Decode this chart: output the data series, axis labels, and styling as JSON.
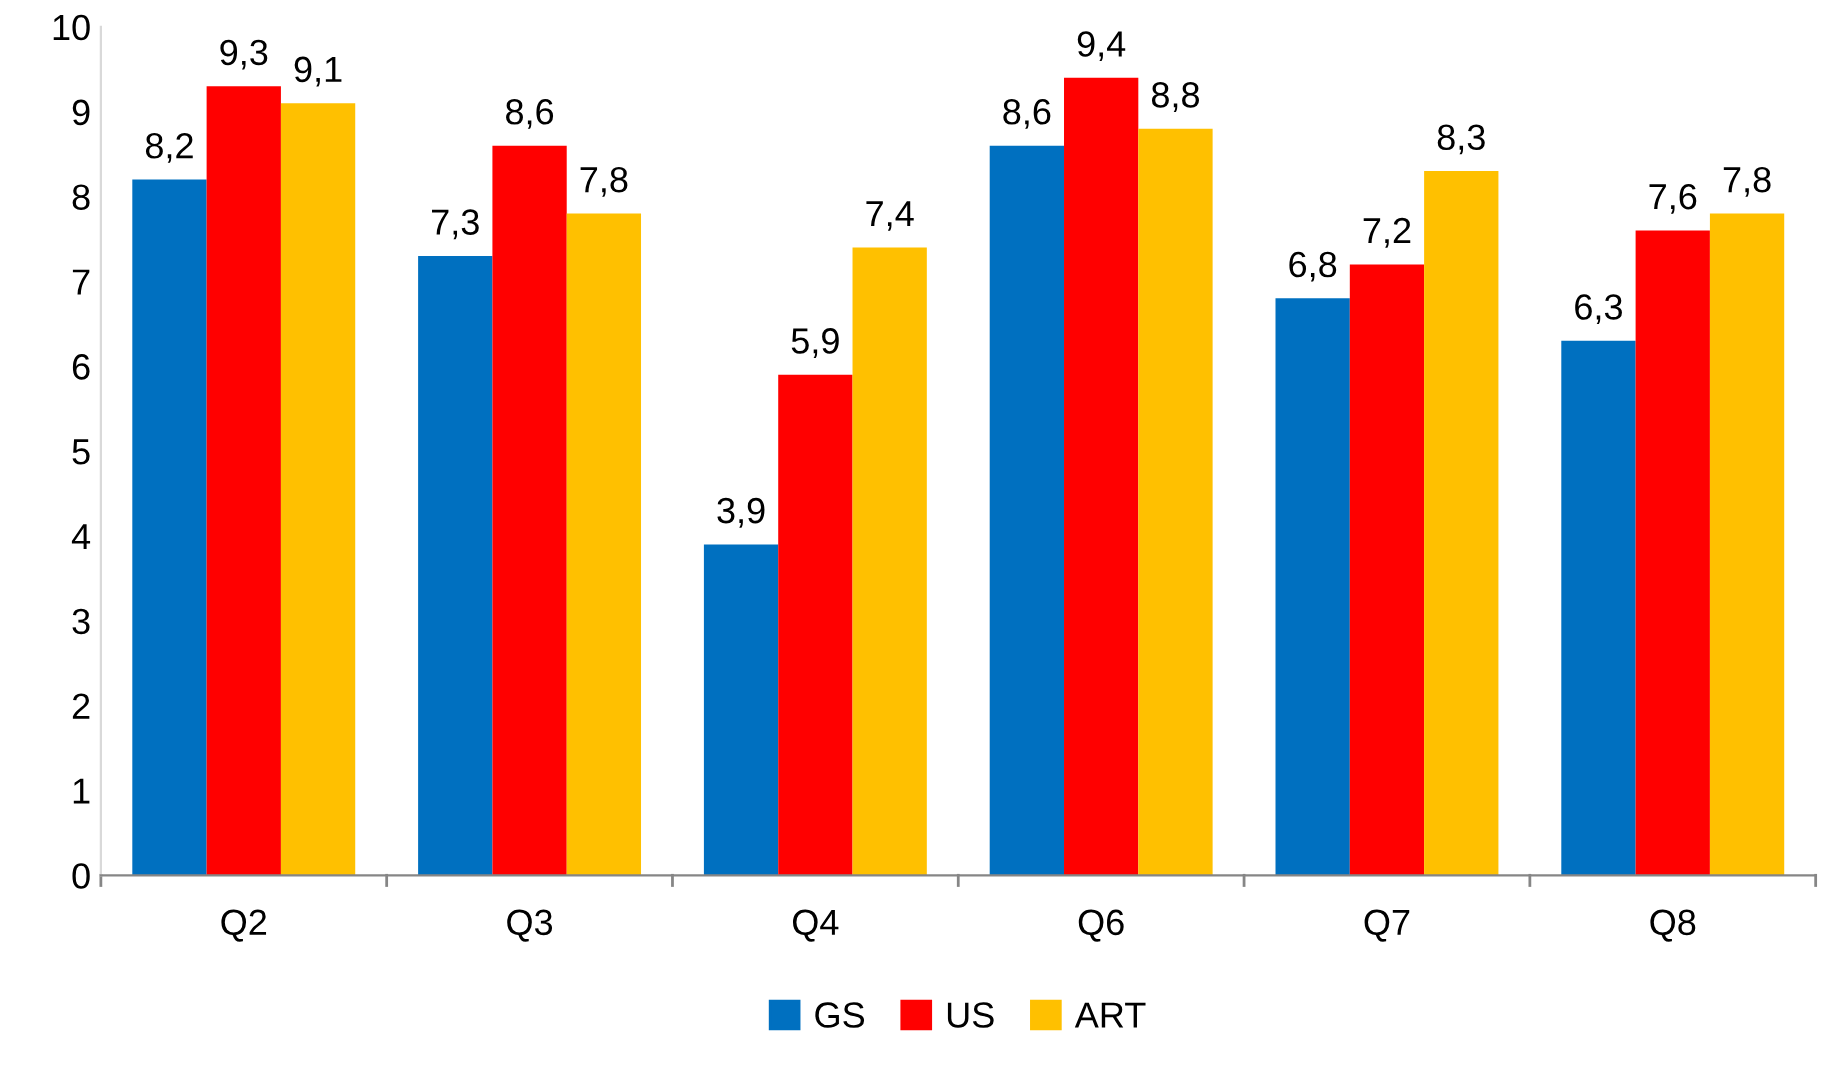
{
  "chart_data": {
    "type": "bar",
    "categories": [
      "Q2",
      "Q3",
      "Q4",
      "Q6",
      "Q7",
      "Q8"
    ],
    "series": [
      {
        "name": "GS",
        "color": "#0070c0",
        "values": [
          8.2,
          7.3,
          3.9,
          8.6,
          6.8,
          6.3
        ],
        "value_labels": [
          "8,2",
          "7,3",
          "3,9",
          "8,6",
          "6,8",
          "6,3"
        ]
      },
      {
        "name": "US",
        "color": "#ff0000",
        "values": [
          9.3,
          8.6,
          5.9,
          9.4,
          7.2,
          7.6
        ],
        "value_labels": [
          "9,3",
          "8,6",
          "5,9",
          "9,4",
          "7,2",
          "7,6"
        ]
      },
      {
        "name": "ART",
        "color": "#ffc000",
        "values": [
          9.1,
          7.8,
          7.4,
          8.8,
          8.3,
          7.8
        ],
        "value_labels": [
          "9,1",
          "7,8",
          "7,4",
          "8,8",
          "8,3",
          "7,8"
        ]
      }
    ],
    "ylim": [
      0,
      10
    ],
    "yticks": [
      0,
      1,
      2,
      3,
      4,
      5,
      6,
      7,
      8,
      9,
      10
    ],
    "grid": false,
    "legend": "bottom"
  }
}
